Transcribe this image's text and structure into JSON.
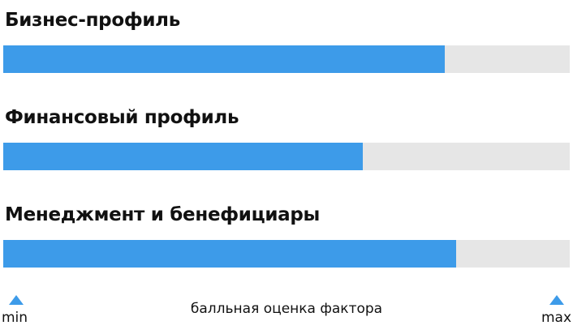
{
  "chart_data": {
    "type": "bar",
    "orientation": "horizontal",
    "categories": [
      "Бизнес-профиль",
      "Финансовый профиль",
      "Менеджмент и бенефициары"
    ],
    "values": [
      0.78,
      0.635,
      0.8
    ],
    "xlim": [
      0,
      1
    ],
    "xlabel": "балльная оценка фактора",
    "scale_min_label": "min",
    "scale_max_label": "max",
    "colors": {
      "fill": "#3d9be9",
      "track": "#e6e6e6"
    },
    "grid": false
  }
}
